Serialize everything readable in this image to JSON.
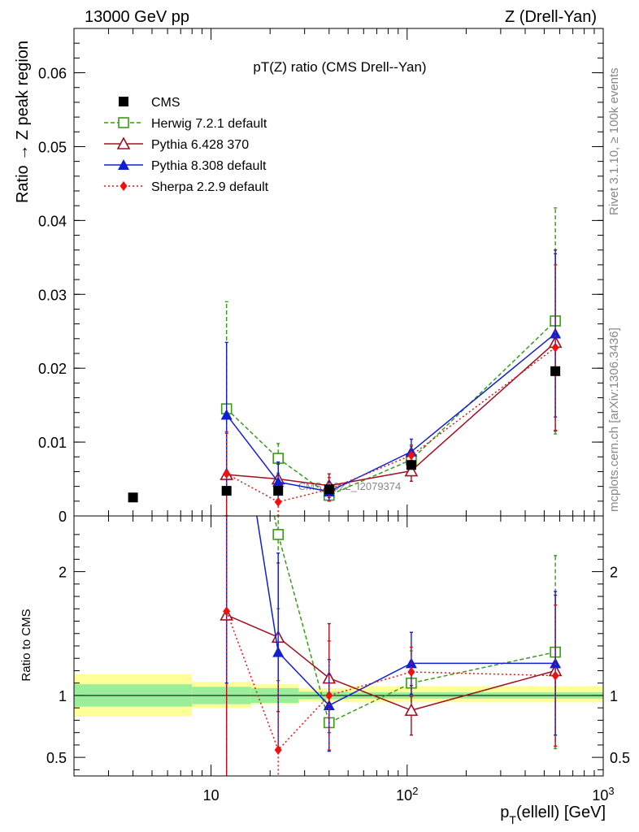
{
  "header": {
    "left": "13000 GeV pp",
    "right": "Z (Drell-Yan)"
  },
  "side_labels": {
    "rivet": "Rivet 3.1.10, ≥ 100k events",
    "mcplots": "mcplots.cern.ch [arXiv:1306.3436]"
  },
  "chart_data": {
    "type": "scatter",
    "title": "pT(Z) ratio (CMS Drell--Yan)",
    "watermark": "CMS_2022_I2079374",
    "xlabel": "p_T(ellell) [GeV]",
    "x_scale": "log",
    "xlim": [
      2,
      1000
    ],
    "x_tick_labels": [
      "10",
      "10^2",
      "10^3"
    ],
    "legend_position": "top-left",
    "main": {
      "ylabel": "Ratio → Z peak region",
      "ylim": [
        0,
        0.066
      ],
      "y_tick_labels": [
        "0",
        "0.01",
        "0.02",
        "0.03",
        "0.04",
        "0.05",
        "0.06"
      ],
      "series": [
        {
          "name": "CMS",
          "color": "#000000",
          "marker": "filled-square",
          "line": "none",
          "x": [
            4,
            12,
            22,
            40,
            105,
            570
          ],
          "y": [
            0.0025,
            0.0034,
            0.0034,
            0.0036,
            0.0069,
            0.0196
          ],
          "err": [
            0,
            0,
            0,
            0,
            0,
            0
          ]
        },
        {
          "name": "Herwig 7.2.1 default",
          "color": "#3a9a1a",
          "marker": "open-square",
          "line": "dashed",
          "x": [
            12,
            22,
            40,
            105,
            570
          ],
          "y": [
            0.0145,
            0.0078,
            0.0028,
            0.0076,
            0.0264
          ],
          "err": [
            0.0145,
            0.002,
            0.0008,
            0.0018,
            0.0153
          ]
        },
        {
          "name": "Pythia 6.428 370",
          "color": "#a01020",
          "marker": "open-triangle",
          "line": "solid",
          "x": [
            12,
            22,
            40,
            105,
            570
          ],
          "y": [
            0.0056,
            0.005,
            0.0041,
            0.0061,
            0.0235
          ],
          "err": [
            0.0056,
            0.002,
            0.0016,
            0.0014,
            0.012
          ]
        },
        {
          "name": "Pythia 8.308 default",
          "color": "#1020d0",
          "marker": "filled-triangle",
          "line": "solid",
          "x": [
            12,
            22,
            40,
            105,
            570
          ],
          "y": [
            0.0137,
            0.0046,
            0.0033,
            0.0087,
            0.0247
          ],
          "err": [
            0.0098,
            0.0027,
            0.0013,
            0.0017,
            0.0113
          ]
        },
        {
          "name": "Sherpa 2.2.9 default",
          "color": "#f01010",
          "marker": "filled-diamond",
          "line": "dotted",
          "x": [
            12,
            22,
            40,
            105,
            570
          ],
          "y": [
            0.0057,
            0.0019,
            0.0036,
            0.0082,
            0.0228
          ],
          "err": [
            0.0057,
            0.0019,
            0.0016,
            0.0014,
            0.0112
          ]
        }
      ]
    },
    "ratio": {
      "ylabel": "Ratio to CMS",
      "ylim": [
        0.35,
        2.45
      ],
      "y_tick_labels": [
        "0.5",
        "1",
        "2"
      ],
      "reference_line": 1,
      "bands": [
        {
          "xmin": 2,
          "xmax": 8,
          "inner": [
            0.91,
            1.09
          ],
          "outer": [
            0.83,
            1.17
          ]
        },
        {
          "xmin": 8,
          "xmax": 16,
          "inner": [
            0.93,
            1.07
          ],
          "outer": [
            0.9,
            1.11
          ]
        },
        {
          "xmin": 16,
          "xmax": 28,
          "inner": [
            0.94,
            1.06
          ],
          "outer": [
            0.93,
            1.09
          ]
        },
        {
          "xmin": 28,
          "xmax": 50,
          "inner": [
            0.97,
            1.03
          ],
          "outer": [
            0.95,
            1.06
          ]
        },
        {
          "xmin": 50,
          "xmax": 1000,
          "inner": [
            0.975,
            1.025
          ],
          "outer": [
            0.945,
            1.075
          ]
        }
      ],
      "series": [
        {
          "name": "Herwig 7.2.1 default",
          "x": [
            12,
            22,
            40,
            105,
            570
          ],
          "y": [
            4.3,
            2.3,
            0.78,
            1.1,
            1.35
          ],
          "err": [
            4.3,
            0.6,
            0.23,
            0.26,
            0.78
          ]
        },
        {
          "name": "Pythia 6.428 370",
          "x": [
            12,
            22,
            40,
            105,
            570
          ],
          "y": [
            1.65,
            1.47,
            1.14,
            0.88,
            1.2
          ],
          "err": [
            1.65,
            0.6,
            0.44,
            0.2,
            0.61
          ]
        },
        {
          "name": "Pythia 8.308 default",
          "x": [
            12,
            22,
            40,
            105,
            570
          ],
          "y": [
            4.0,
            1.35,
            0.92,
            1.26,
            1.26
          ],
          "err": [
            2.9,
            0.8,
            0.37,
            0.25,
            0.58
          ]
        },
        {
          "name": "Sherpa 2.2.9 default",
          "x": [
            12,
            22,
            40,
            105,
            570
          ],
          "y": [
            1.68,
            0.56,
            1.0,
            1.19,
            1.16
          ],
          "err": [
            1.68,
            0.56,
            0.44,
            0.2,
            0.57
          ]
        }
      ]
    }
  }
}
